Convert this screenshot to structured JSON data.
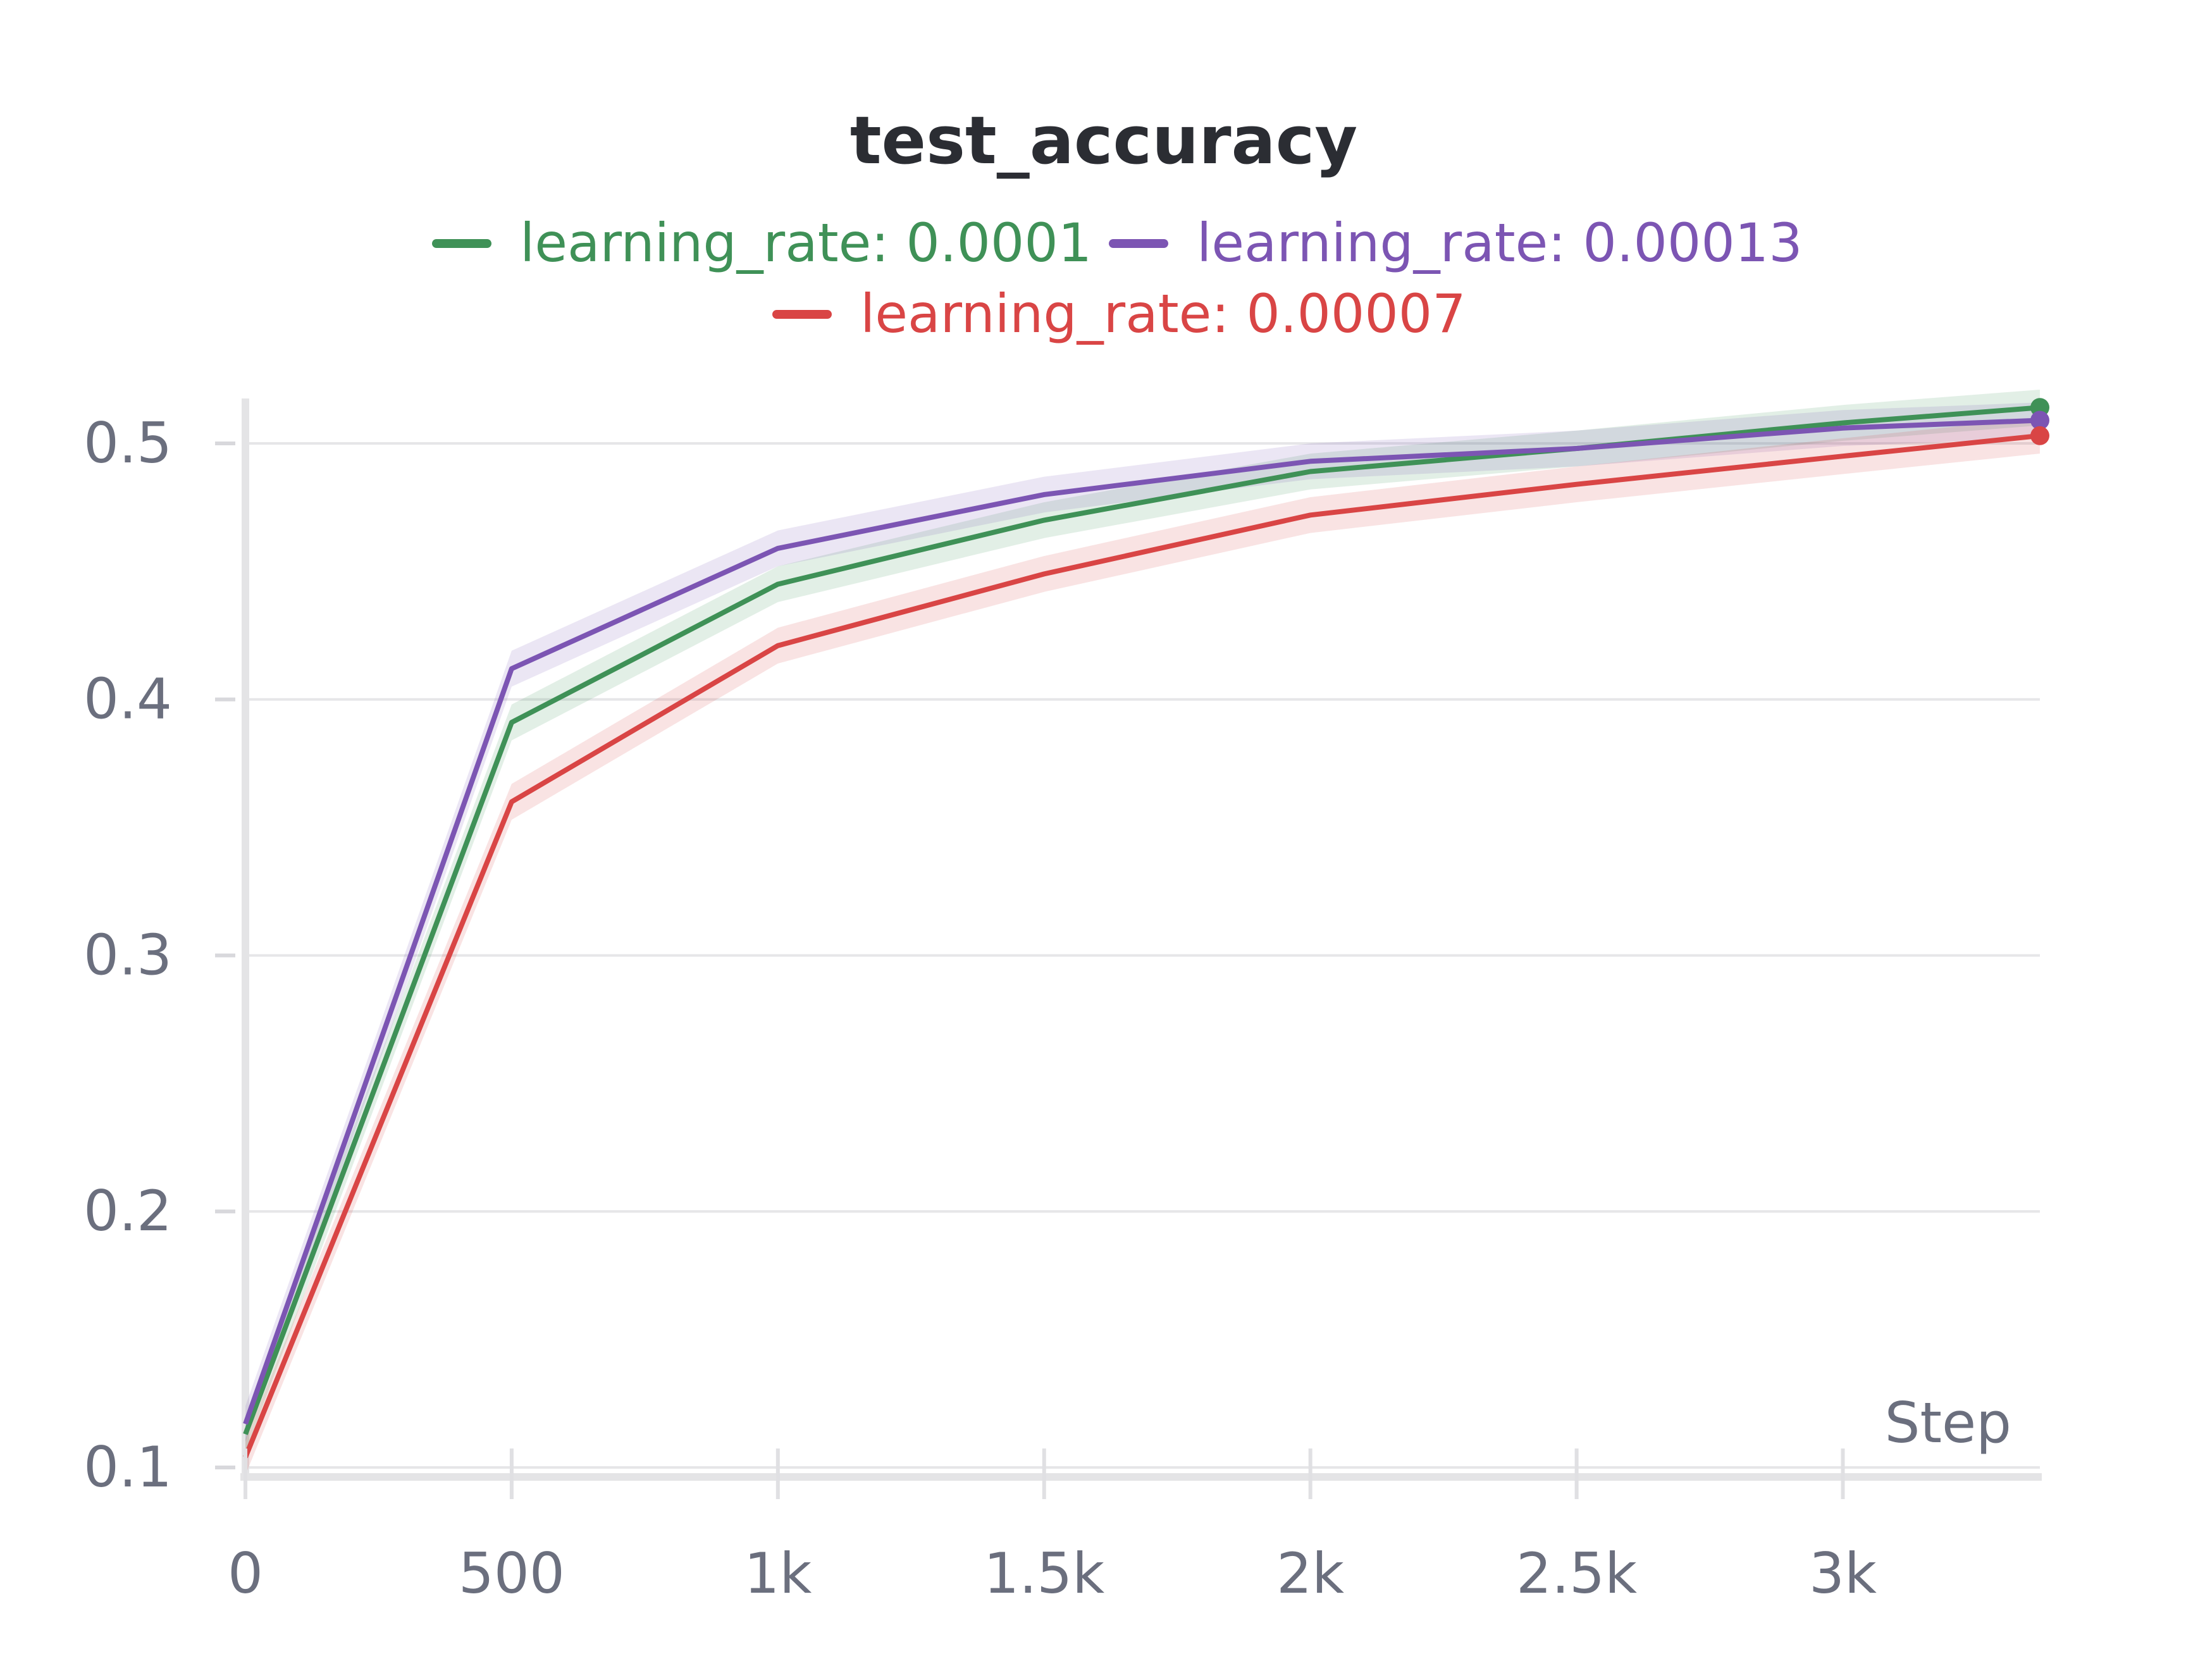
{
  "chart_data": {
    "type": "line",
    "title": "test_accuracy",
    "xlabel": "Step",
    "ylabel": "",
    "xlim": [
      0,
      3370
    ],
    "ylim": [
      0.1,
      0.52
    ],
    "x_ticks": [
      0,
      500,
      1000,
      1500,
      2000,
      2500,
      3000
    ],
    "x_tick_labels": [
      "0",
      "500",
      "1k",
      "1.5k",
      "2k",
      "2.5k",
      "3k"
    ],
    "y_ticks": [
      0.1,
      0.2,
      0.3,
      0.4,
      0.5
    ],
    "y_tick_labels": [
      "0.1",
      "0.2",
      "0.3",
      "0.4",
      "0.5"
    ],
    "grid": true,
    "legend_position": "top-center",
    "x": [
      0,
      500,
      1000,
      1500,
      2000,
      2500,
      3000,
      3370
    ],
    "series": [
      {
        "name": "learning_rate: 0.0001",
        "color": "#3f9157",
        "values": [
          0.113,
          0.391,
          0.445,
          0.47,
          0.489,
          0.498,
          0.508,
          0.514
        ],
        "band": 0.007
      },
      {
        "name": "learning_rate: 0.00013",
        "color": "#7c55b3",
        "values": [
          0.117,
          0.412,
          0.459,
          0.48,
          0.493,
          0.498,
          0.506,
          0.509
        ],
        "band": 0.007
      },
      {
        "name": "learning_rate: 0.00007",
        "color": "#d94545",
        "values": [
          0.104,
          0.36,
          0.421,
          0.449,
          0.472,
          0.484,
          0.495,
          0.503
        ],
        "band": 0.007
      }
    ]
  }
}
